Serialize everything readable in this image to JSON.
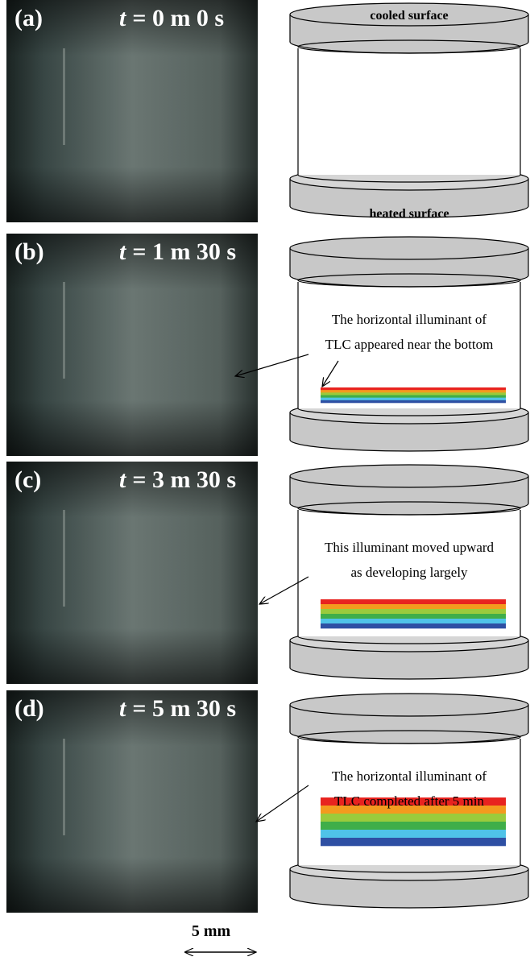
{
  "panels": [
    {
      "label": "(a)",
      "time_symbol": "t",
      "time_value": "= 0 m 0 s",
      "top_label": "cooled surface",
      "bottom_label": "heated surface"
    },
    {
      "label": "(b)",
      "time_symbol": "t",
      "time_value": "= 1 m 30 s",
      "annotation": [
        "The horizontal illuminant of",
        "TLC appeared near the bottom"
      ]
    },
    {
      "label": "(c)",
      "time_symbol": "t",
      "time_value": "= 3 m 30 s",
      "annotation": [
        "This illuminant moved upward",
        "as developing largely"
      ]
    },
    {
      "label": "(d)",
      "time_symbol": "t",
      "time_value": "= 5 m 30 s",
      "annotation": [
        "The horizontal illuminant of",
        "TLC completed after 5 min"
      ]
    }
  ],
  "scale_bar": "5 mm"
}
